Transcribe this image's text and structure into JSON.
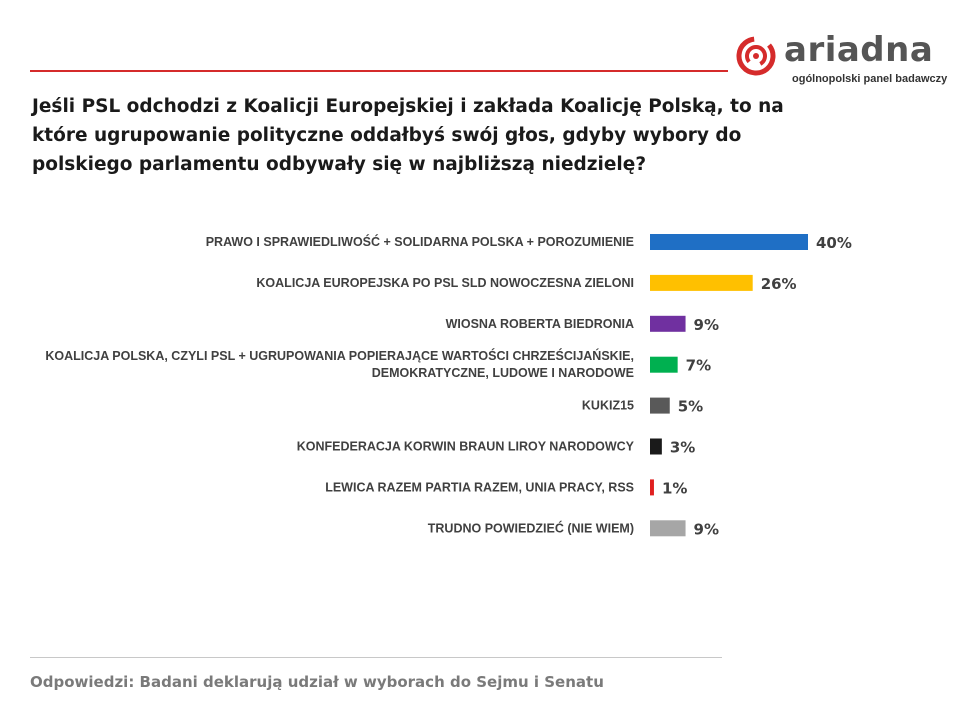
{
  "logo": {
    "brand": "ariadna",
    "tagline": "ogólnopolski panel badawczy",
    "accent": "#d52b2b"
  },
  "question": "Jeśli PSL odchodzi z Koalicji Europejskiej i zakłada Koalicję Polską, to na które ugrupowanie polityczne oddałbyś swój głos, gdyby wybory do polskiego parlamentu odbywały się w najbliższą niedzielę?",
  "footnote": "Odpowiedzi: Badani deklarują udział w wyborach do Sejmu i Senatu",
  "chart_data": {
    "type": "bar",
    "orientation": "horizontal",
    "value_suffix": "%",
    "categories": [
      [
        "PRAWO I SPRAWIEDLIWOŚĆ + SOLIDARNA POLSKA + POROZUMIENIE"
      ],
      [
        "KOALICJA EUROPEJSKA PO PSL SLD NOWOCZESNA ZIELONI"
      ],
      [
        "WIOSNA ROBERTA BIEDRONIA"
      ],
      [
        "KOALICJA POLSKA, CZYLI PSL + UGRUPOWANIA POPIERAJĄCE WARTOŚCI CHRZEŚCIJAŃSKIE,",
        "DEMOKRATYCZNE, LUDOWE I NARODOWE"
      ],
      [
        "KUKIZ15"
      ],
      [
        "KONFEDERACJA KORWIN BRAUN LIROY NARODOWCY"
      ],
      [
        "LEWICA RAZEM PARTIA RAZEM, UNIA PRACY, RSS"
      ],
      [
        "TRUDNO POWIEDZIEĆ (NIE WIEM)"
      ]
    ],
    "values": [
      40,
      26,
      9,
      7,
      5,
      3,
      1,
      9
    ],
    "colors": [
      "#1f6fc5",
      "#ffc000",
      "#7030a0",
      "#00b050",
      "#595959",
      "#1a1a1a",
      "#e02020",
      "#a6a6a6"
    ],
    "grid": false,
    "legend": false
  }
}
